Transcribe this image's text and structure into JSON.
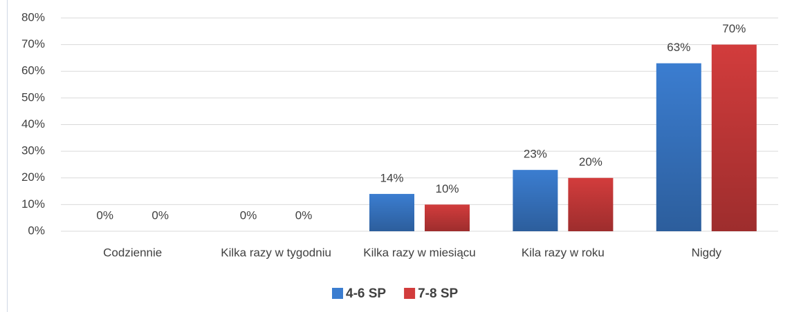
{
  "chart_data": {
    "type": "bar",
    "categories": [
      "Codziennie",
      "Kilka razy w tygodniu",
      "Kilka razy w miesiącu",
      "Kila razy w roku",
      "Nigdy"
    ],
    "series": [
      {
        "name": "4-6 SP",
        "color": "#3b7dd0",
        "values": [
          0,
          0,
          14,
          23,
          63
        ],
        "value_labels": [
          "0%",
          "0%",
          "14%",
          "23%",
          "63%"
        ]
      },
      {
        "name": "7-8 SP",
        "color": "#d23c3c",
        "values": [
          0,
          0,
          10,
          20,
          70
        ],
        "value_labels": [
          "0%",
          "0%",
          "10%",
          "20%",
          "70%"
        ]
      }
    ],
    "ylim": [
      0,
      80
    ],
    "yticks": [
      {
        "value": 0,
        "label": "0%"
      },
      {
        "value": 10,
        "label": "10%"
      },
      {
        "value": 20,
        "label": "20%"
      },
      {
        "value": 30,
        "label": "30%"
      },
      {
        "value": 40,
        "label": "40%"
      },
      {
        "value": 50,
        "label": "50%"
      },
      {
        "value": 60,
        "label": "60%"
      },
      {
        "value": 70,
        "label": "70%"
      },
      {
        "value": 80,
        "label": "80%"
      }
    ],
    "grid": true,
    "legend": "bottom"
  }
}
